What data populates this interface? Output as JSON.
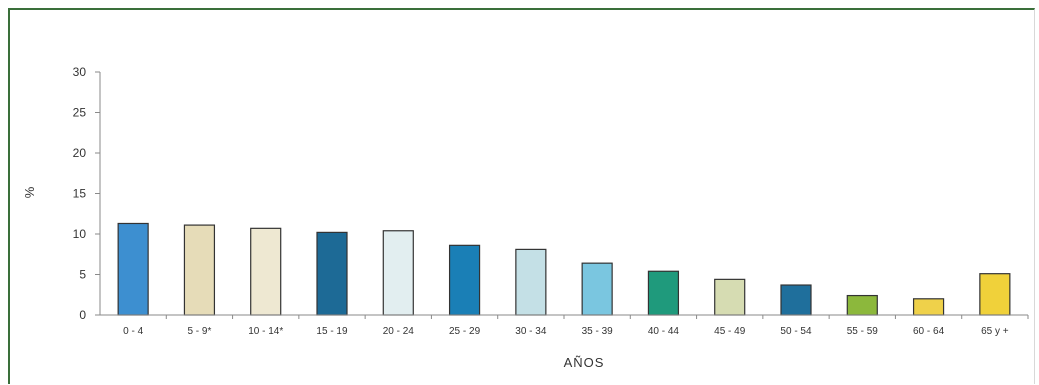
{
  "chart_data": {
    "type": "bar",
    "title": "",
    "xlabel": "AÑOS",
    "ylabel": "%",
    "ylim": [
      0,
      30
    ],
    "yticks": [
      "0",
      "5",
      "10",
      "15",
      "20",
      "25",
      "30"
    ],
    "grid": false,
    "legend": "none",
    "categories": [
      "0 - 4",
      "5 - 9*",
      "10 - 14*",
      "15 - 19",
      "20 - 24",
      "25 - 29",
      "30 - 34",
      "35 - 39",
      "40 - 44",
      "45 - 49",
      "50 - 54",
      "55 - 59",
      "60 - 64",
      "65 y +"
    ],
    "values": [
      11.3,
      11.1,
      10.7,
      10.2,
      10.4,
      8.6,
      8.1,
      6.4,
      5.4,
      4.4,
      3.7,
      2.4,
      2.0,
      5.1
    ],
    "colors": [
      "#3d8fd0",
      "#e6dcb8",
      "#eee8d2",
      "#1d6a96",
      "#e2eef0",
      "#1a7fb6",
      "#c4e0e6",
      "#7ac6e0",
      "#1f9a7c",
      "#d6dcb2",
      "#1f6f9c",
      "#8cb83c",
      "#efd14a",
      "#f0d13a"
    ]
  }
}
